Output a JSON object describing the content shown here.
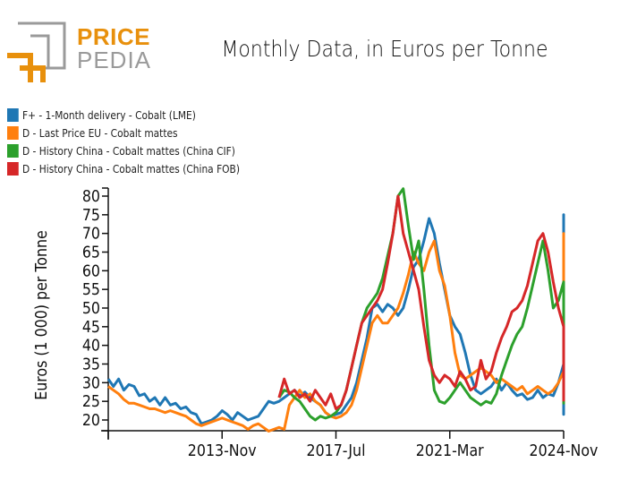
{
  "logo": {
    "top": "PRICE",
    "bottom": "PEDIA"
  },
  "chart_data": {
    "type": "line",
    "title": "Monthly Data, in Euros per Tonne",
    "xlabel": "",
    "ylabel": "Euros (1 000) per Tonne",
    "ylim": [
      17,
      82
    ],
    "yticks": [
      20,
      25,
      30,
      35,
      40,
      45,
      50,
      55,
      60,
      65,
      70,
      75,
      80
    ],
    "xticks": [
      {
        "label": "",
        "month_index": 0
      },
      {
        "label": "2013-Nov",
        "month_index": 44
      },
      {
        "label": "2017-Jul",
        "month_index": 88
      },
      {
        "label": "2021-Mar",
        "month_index": 132
      },
      {
        "label": "2024-Nov",
        "month_index": 176
      }
    ],
    "x_start": "2010-Mar",
    "x_end": "2024-Nov",
    "legend_position": "top-left",
    "series": [
      {
        "name": "F+ - 1-Month delivery - Cobalt (LME)",
        "color": "#1f77b4",
        "start_index": 0,
        "step": 2,
        "values": [
          31,
          29,
          31,
          28,
          29.5,
          29,
          26.5,
          27,
          25,
          26,
          24,
          26,
          24,
          24.5,
          23,
          23.5,
          22,
          21.5,
          19,
          19.5,
          20,
          21,
          22.5,
          21.5,
          20,
          22,
          21,
          20,
          20.5,
          21,
          23,
          25,
          24.5,
          25,
          26,
          27,
          28,
          26.5,
          27.5,
          26,
          25,
          24,
          22,
          21,
          21.5,
          22,
          24,
          26,
          30,
          36,
          42,
          50,
          51,
          49,
          51,
          50,
          48,
          50,
          55,
          61,
          63,
          68,
          74,
          70,
          62,
          55,
          48,
          45,
          43,
          38,
          32,
          28,
          27,
          28,
          29,
          31,
          28,
          30,
          28,
          26.5,
          27,
          25.5,
          26,
          28,
          26,
          27,
          26.5,
          30,
          35,
          40,
          44,
          38,
          40,
          43,
          44,
          45,
          50,
          54,
          61,
          67,
          72,
          75,
          70,
          58,
          49,
          50,
          52,
          50,
          45,
          38,
          33,
          31,
          30.5,
          29,
          28,
          27.5,
          27,
          25,
          26,
          23,
          22,
          21.5,
          22
        ]
      },
      {
        "name": "D - Last Price EU - Cobalt mattes",
        "color": "#ff7f0e",
        "start_index": 0,
        "step": 2,
        "values": [
          29,
          28,
          27,
          25.5,
          24.5,
          24.5,
          24,
          23.5,
          23,
          23,
          22.5,
          22,
          22.5,
          22,
          21.5,
          21,
          20,
          19,
          18.5,
          19,
          19.5,
          20,
          20.5,
          20,
          19.5,
          19,
          18.5,
          17.5,
          18.5,
          19,
          18,
          17,
          17.5,
          18,
          17.5,
          24,
          26,
          28,
          26,
          27,
          25,
          24,
          22,
          21,
          20.5,
          21,
          22,
          24,
          28,
          34,
          40,
          46,
          48,
          46,
          46,
          48,
          50,
          54,
          59,
          65,
          62,
          60,
          65,
          68,
          60,
          56,
          48,
          38,
          32,
          31,
          32,
          33,
          34,
          33,
          32,
          30,
          31,
          30,
          29,
          28,
          29,
          27,
          28,
          29,
          28,
          27,
          28,
          30,
          33,
          36,
          38,
          40,
          43,
          45,
          50,
          55,
          60,
          66,
          70,
          65,
          56,
          48,
          45,
          52,
          50,
          45,
          40,
          35,
          33,
          32,
          31,
          30,
          29,
          28,
          28,
          27,
          26.5,
          26,
          26,
          25
        ]
      },
      {
        "name": "D - History China - Cobalt mattes (China CIF)",
        "color": "#2ca02c",
        "start_index": 66,
        "step": 2,
        "values": [
          26,
          28,
          27.5,
          26,
          25,
          23,
          21,
          20,
          21,
          20.5,
          21,
          22,
          24,
          28,
          34,
          40,
          46,
          50,
          52,
          54,
          58,
          64,
          70,
          80,
          82,
          72,
          63,
          68,
          55,
          40,
          28,
          25,
          24.5,
          26,
          28,
          30,
          28,
          26,
          25,
          24,
          25,
          24.5,
          27,
          32,
          36,
          40,
          43,
          45,
          50,
          56,
          62,
          68,
          60,
          50,
          52,
          57,
          46,
          36,
          31,
          30,
          29,
          27,
          27,
          26,
          25,
          24.5,
          25
        ]
      },
      {
        "name": "D - History China - Cobalt mattes (China FOB)",
        "color": "#d62728",
        "start_index": 66,
        "step": 2,
        "values": [
          26,
          31,
          27,
          28,
          26,
          27,
          25,
          28,
          26,
          24,
          27,
          23,
          24,
          28,
          34,
          40,
          46,
          48,
          50,
          52,
          55,
          62,
          70,
          80,
          70,
          65,
          60,
          55,
          45,
          36,
          32,
          30,
          32,
          31,
          29,
          33,
          31,
          28,
          29,
          36,
          31,
          33,
          38,
          42,
          45,
          49,
          50,
          52,
          56,
          62,
          68,
          70,
          65,
          57,
          50,
          45,
          42,
          40,
          33,
          32,
          31,
          34,
          33,
          30,
          29,
          28,
          27,
          26,
          25
        ]
      }
    ]
  }
}
